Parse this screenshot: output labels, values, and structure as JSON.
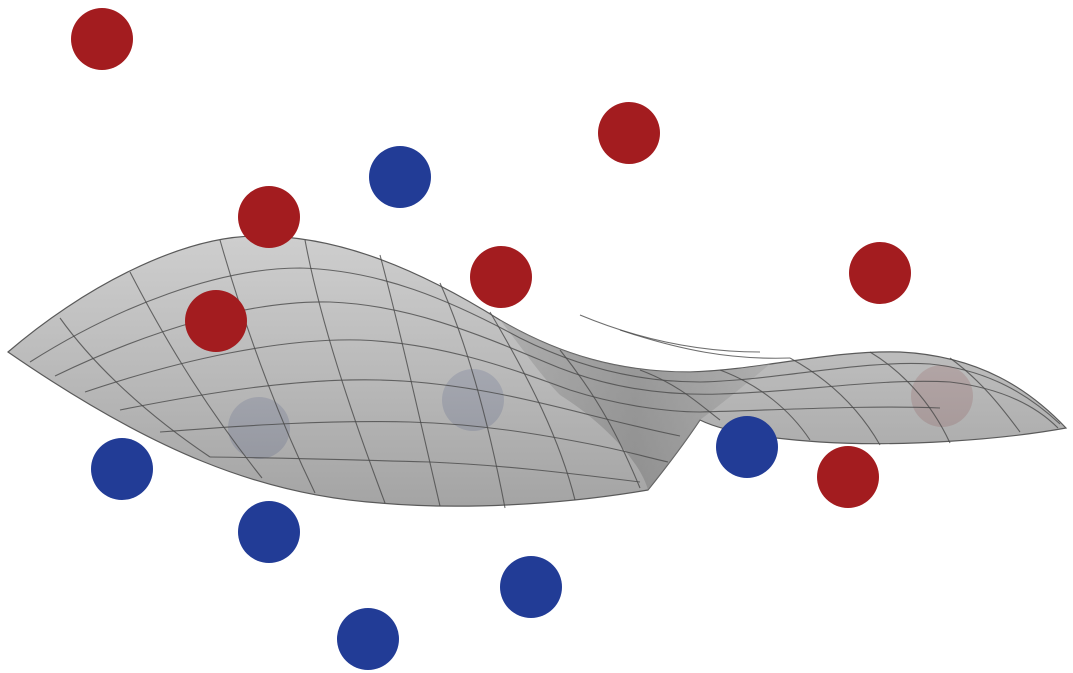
{
  "colors": {
    "background": "#ffffff",
    "class_a": "#a31c1f",
    "class_b": "#223c96",
    "surface_fill": "#b5b5b5",
    "surface_shadow": "#8e8e8e",
    "surface_grid": "#4a4a4a"
  },
  "surface": {
    "type": "curved decision surface",
    "grid": true,
    "opacity": 0.85
  },
  "points": {
    "class_a_count": 8,
    "class_b_count": 8,
    "occluded_by_surface": 3
  }
}
